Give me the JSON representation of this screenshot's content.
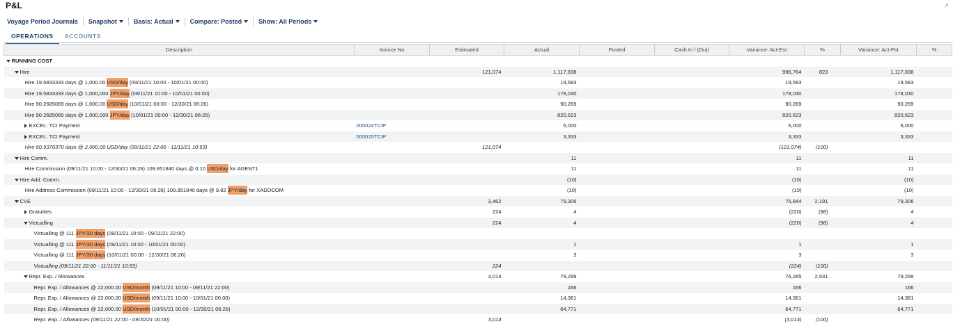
{
  "header": {
    "title": "P&L"
  },
  "toolbar": [
    "Voyage Period Journals",
    "Snapshot",
    "Basis: Actual",
    "Compare: Posted",
    "Show: All Periods"
  ],
  "tabs": [
    "OPERATIONS",
    "ACCOUNTS"
  ],
  "table": {
    "columns": [
      "Description",
      "Invoice No",
      "Estimated",
      "Actual",
      "Posted",
      "Cash In / (Out)",
      "Variance: Act-Est",
      "%",
      "Variance: Act-Pst",
      "%"
    ],
    "rows": [
      {
        "description": "RUNNING COST"
      },
      {
        "description": "Hire",
        "estimated": "121,074",
        "actual": "1,117,838",
        "variance_act_est": "996,764",
        "pct_est": "823",
        "variance_act_pst": "1,117,838"
      },
      {
        "description": "Hire 19.5833333 days @ 1,000.00 ",
        "unit": "USD/day",
        "description_end": " (09/11/21 10:00 - 10/01/21 00:00)",
        "actual": "19,583",
        "variance_act_est": "19,583",
        "variance_act_pst": "19,583"
      },
      {
        "description": "Hire 19.5833333 days @ 1,000,000 ",
        "unit": "JPY/day",
        "description_end": " (09/11/21 10:00 - 10/01/21 00:00)",
        "actual": "178,030",
        "variance_act_est": "178,030",
        "variance_act_pst": "178,030"
      },
      {
        "description": "Hire 90.2685069 days @ 1,000.00 ",
        "unit": "USD/day",
        "description_end": " (10/01/21 00:00 - 12/30/21 06:26)",
        "actual": "90,269",
        "variance_act_est": "90,269",
        "variance_act_pst": "90,269"
      },
      {
        "description": "Hire 90.2685069 days @ 1,000,000 ",
        "unit": "JPY/day",
        "description_end": " (10/01/21 00:00 - 12/30/21 06:26)",
        "actual": "820,623",
        "variance_act_est": "820,623",
        "variance_act_pst": "820,623"
      },
      {
        "description": "EXCEL: TCI Payment",
        "invoice_no": "000024TCIP",
        "actual": "6,000",
        "variance_act_est": "6,000",
        "variance_act_pst": "6,000"
      },
      {
        "description": "EXCEL: TCI Payment",
        "invoice_no": "000025TCIP",
        "actual": "3,333",
        "variance_act_est": "3,333",
        "variance_act_pst": "3,333"
      },
      {
        "description": "Hire 60.5370370 days @ 2,000.00 USD/day (09/11/21 22:00 - 11/11/21 10:53)",
        "estimated": "121,074",
        "variance_act_est": "(121,074)",
        "pct_est": "(100)"
      },
      {
        "description": "Hire Comm.",
        "actual": "11",
        "variance_act_est": "11",
        "variance_act_pst": "11"
      },
      {
        "description": "Hire Commission (09/11/21 10:00 - 12/30/21 06:26) 109.851840 days @ 0.10 ",
        "unit": "USD/day",
        "description_end": " for AGENT1",
        "actual": "11",
        "variance_act_est": "11",
        "variance_act_pst": "11"
      },
      {
        "description": "Hire Add. Comm.",
        "actual": "(10)",
        "variance_act_est": "(10)",
        "variance_act_pst": "(10)"
      },
      {
        "description": "Hire Address Commission (09/11/21 10:00 - 12/30/21 06:26) 109.851840 days @ 9.82 ",
        "unit": "JPY/day",
        "description_end": " for XADDCOM",
        "actual": "(10)",
        "variance_act_est": "(10)",
        "variance_act_pst": "(10)"
      },
      {
        "description": "CVE",
        "estimated": "3,462",
        "actual": "79,306",
        "variance_act_est": "75,844",
        "pct_est": "2,191",
        "variance_act_pst": "79,306"
      },
      {
        "description": "Gratuities",
        "estimated": "224",
        "actual": "4",
        "variance_act_est": "(220)",
        "pct_est": "(98)",
        "variance_act_pst": "4"
      },
      {
        "description": "Victualling",
        "estimated": "224",
        "actual": "4",
        "variance_act_est": "(220)",
        "pct_est": "(98)",
        "variance_act_pst": "4"
      },
      {
        "description": "Victualling @ 111 ",
        "unit": "JPY/30 days",
        "description_end": " (09/11/21 10:00 - 09/11/21 22:00)"
      },
      {
        "description": "Victualling @ 111 ",
        "unit": "JPY/30 days",
        "description_end": " (09/11/21 10:00 - 10/01/21 00:00)",
        "actual": "1",
        "variance_act_est": "1",
        "variance_act_pst": "1"
      },
      {
        "description": "Victualling @ 111 ",
        "unit": "JPY/30 days",
        "description_end": " (10/01/21 00:00 - 12/30/21 06:26)",
        "actual": "3",
        "variance_act_est": "3",
        "variance_act_pst": "3"
      },
      {
        "description": "Victualling (09/11/21 22:00 - 11/11/21 10:53)",
        "estimated": "224",
        "variance_act_est": "(224)",
        "pct_est": "(100)"
      },
      {
        "description": "Repr. Exp. / Allowances",
        "estimated": "3,014",
        "actual": "79,299",
        "variance_act_est": "76,285",
        "pct_est": "2,531",
        "variance_act_pst": "79,299"
      },
      {
        "description": "Repr. Exp. / Allowances @ 22,000.00 ",
        "unit": "USD/month",
        "description_end": " (09/11/21 10:00 - 09/11/21 22:00)",
        "actual": "166",
        "variance_act_est": "166",
        "variance_act_pst": "166"
      },
      {
        "description": "Repr. Exp. / Allowances @ 22,000.00 ",
        "unit": "USD/month",
        "description_end": " (09/11/21 10:00 - 10/01/21 00:00)",
        "actual": "14,361",
        "variance_act_est": "14,361",
        "variance_act_pst": "14,361"
      },
      {
        "description": "Repr. Exp. / Allowances @ 22,000.00 ",
        "unit": "USD/month",
        "description_end": " (10/01/21 00:00 - 12/30/21 06:26)",
        "actual": "64,771",
        "variance_act_est": "64,771",
        "variance_act_pst": "64,771"
      },
      {
        "description": "Repr. Exp. / Allowances (09/11/21 22:00 - 09/30/21 00:00)",
        "estimated": "3,014",
        "variance_act_est": "(3,014)",
        "pct_est": "(100)"
      }
    ]
  }
}
